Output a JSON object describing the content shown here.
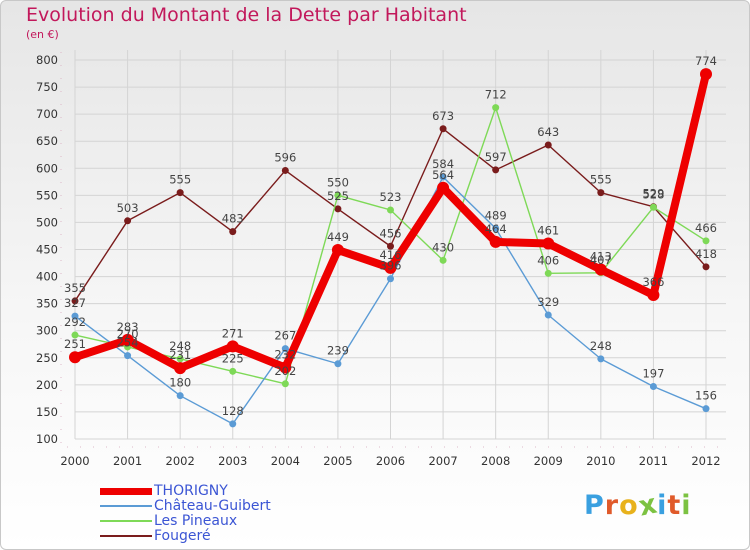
{
  "title": "Evolution du Montant de la Dette par Habitant",
  "unit_label": "(en €)",
  "logo": {
    "letters": [
      "P",
      "r",
      "o",
      "x",
      "i",
      "t",
      "i"
    ],
    "colors": [
      "#3aa0e0",
      "#e05a2a",
      "#e8b21c",
      "#7cc242",
      "#3aa0e0",
      "#e05a2a",
      "#7cc242"
    ]
  },
  "chart_data": {
    "type": "line",
    "title": "Evolution du Montant de la Dette par Habitant",
    "ylabel": "(en €)",
    "xlabel": "",
    "x": [
      "2000",
      "2001",
      "2002",
      "2003",
      "2004",
      "2005",
      "2006",
      "2007",
      "2008",
      "2009",
      "2010",
      "2011",
      "2012"
    ],
    "ylim": [
      100,
      800
    ],
    "yticks": [
      100,
      150,
      200,
      250,
      300,
      350,
      400,
      450,
      500,
      550,
      600,
      650,
      700,
      750,
      800
    ],
    "grid": true,
    "legend_position": "bottom-left",
    "series": [
      {
        "name": "THORIGNY",
        "color": "#ee0000",
        "width": 8,
        "marker_r": 6,
        "values": [
          251,
          283,
          231,
          271,
          232,
          449,
          416,
          564,
          464,
          461,
          413,
          366,
          774
        ],
        "labels": [
          "251",
          "283",
          "231",
          "271",
          "232",
          "449",
          "416",
          "564",
          "464",
          "461",
          "413",
          "366",
          "774"
        ]
      },
      {
        "name": "Château-Guibert",
        "color": "#5b9bd5",
        "width": 1.4,
        "marker_r": 3.5,
        "values": [
          327,
          254,
          180,
          128,
          267,
          239,
          396,
          584,
          489,
          329,
          248,
          197,
          156
        ],
        "labels": [
          "327",
          "254",
          "180",
          "128",
          "267",
          "239",
          "396",
          "584",
          "489",
          "329",
          "248",
          "197",
          "156"
        ]
      },
      {
        "name": "Les Pineaux",
        "color": "#7ed957",
        "width": 1.4,
        "marker_r": 3.5,
        "values": [
          292,
          270,
          248,
          225,
          202,
          550,
          523,
          430,
          712,
          406,
          407,
          528,
          466
        ],
        "labels": [
          "292",
          "270",
          "248",
          "225",
          "202",
          "550",
          "523",
          "430",
          "712",
          "406",
          "407",
          "528",
          "466"
        ]
      },
      {
        "name": "Fougeré",
        "color": "#7a1c1c",
        "width": 1.4,
        "marker_r": 3.5,
        "values": [
          355,
          503,
          555,
          483,
          596,
          525,
          456,
          673,
          597,
          643,
          555,
          529,
          418
        ],
        "labels": [
          "355",
          "503",
          "555",
          "483",
          "596",
          "525",
          "456",
          "673",
          "597",
          "643",
          "555",
          "529",
          "418"
        ]
      }
    ]
  }
}
